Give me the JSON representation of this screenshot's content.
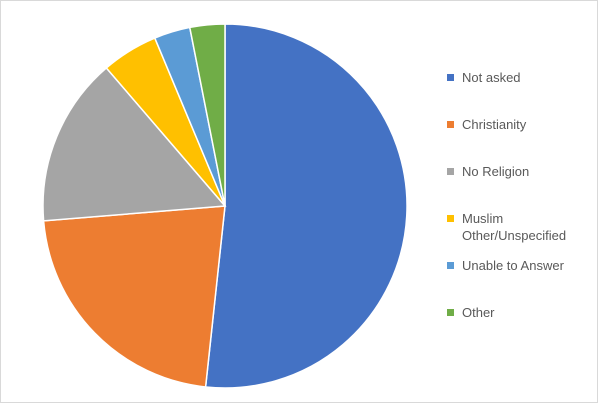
{
  "chart_data": {
    "type": "pie",
    "title": "",
    "categories": [
      "Not asked",
      "Christianity",
      "No Religion",
      "Muslim Other/Unspecified",
      "Unable to Answer",
      "Other"
    ],
    "values": [
      51.7,
      22.0,
      15.0,
      5.0,
      3.2,
      3.1
    ],
    "colors": [
      "#4472C4",
      "#ED7D31",
      "#A5A5A5",
      "#FFC000",
      "#5B9BD5",
      "#70AD47"
    ],
    "start_angle_deg": 0,
    "direction": "clockwise",
    "legend_position": "right"
  }
}
